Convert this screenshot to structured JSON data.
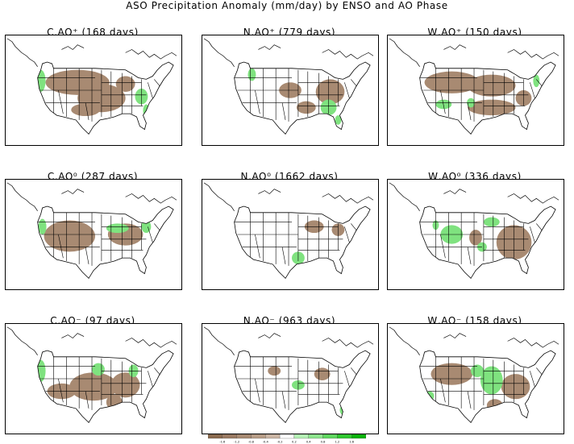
{
  "title": "ASO Precipitation Anomaly (mm/day) by ENSO and AO Phase",
  "panels": [
    {
      "title": "C,AO⁺ (168 days)",
      "enso": "C",
      "ao": "+",
      "days": 168
    },
    {
      "title": "N,AO⁺ (779 days)",
      "enso": "N",
      "ao": "+",
      "days": 779
    },
    {
      "title": "W,AO⁺ (150 days)",
      "enso": "W",
      "ao": "+",
      "days": 150
    },
    {
      "title": "C,AO⁰ (287 days)",
      "enso": "C",
      "ao": "0",
      "days": 287
    },
    {
      "title": "N,AO⁰ (1662 days)",
      "enso": "N",
      "ao": "0",
      "days": 1662
    },
    {
      "title": "W,AO⁰ (336 days)",
      "enso": "W",
      "ao": "0",
      "days": 336
    },
    {
      "title": "C,AO⁻ (97 days)",
      "enso": "C",
      "ao": "-",
      "days": 97
    },
    {
      "title": "N,AO⁻ (963 days)",
      "enso": "N",
      "ao": "-",
      "days": 963
    },
    {
      "title": "W,AO⁻ (158 days)",
      "enso": "W",
      "ao": "-",
      "days": 158
    }
  ],
  "colorbar": {
    "labels": [
      "-1.6",
      "-1.2",
      "-0.8",
      "-0.4",
      "-0.2",
      "0.2",
      "0.4",
      "0.8",
      "1.2",
      "1.6"
    ],
    "colors": [
      "#8a6a4e",
      "#9a7a62",
      "#a88a72",
      "#b89d87",
      "#cbb6a4",
      "#ffffff",
      "#b6f2b6",
      "#8ee68e",
      "#5fd85f",
      "#2fc82f",
      "#08b408"
    ]
  },
  "colors": {
    "dry": "#a88a72",
    "wet": "#7fe27f",
    "wet_strong": "#40cf40"
  }
}
